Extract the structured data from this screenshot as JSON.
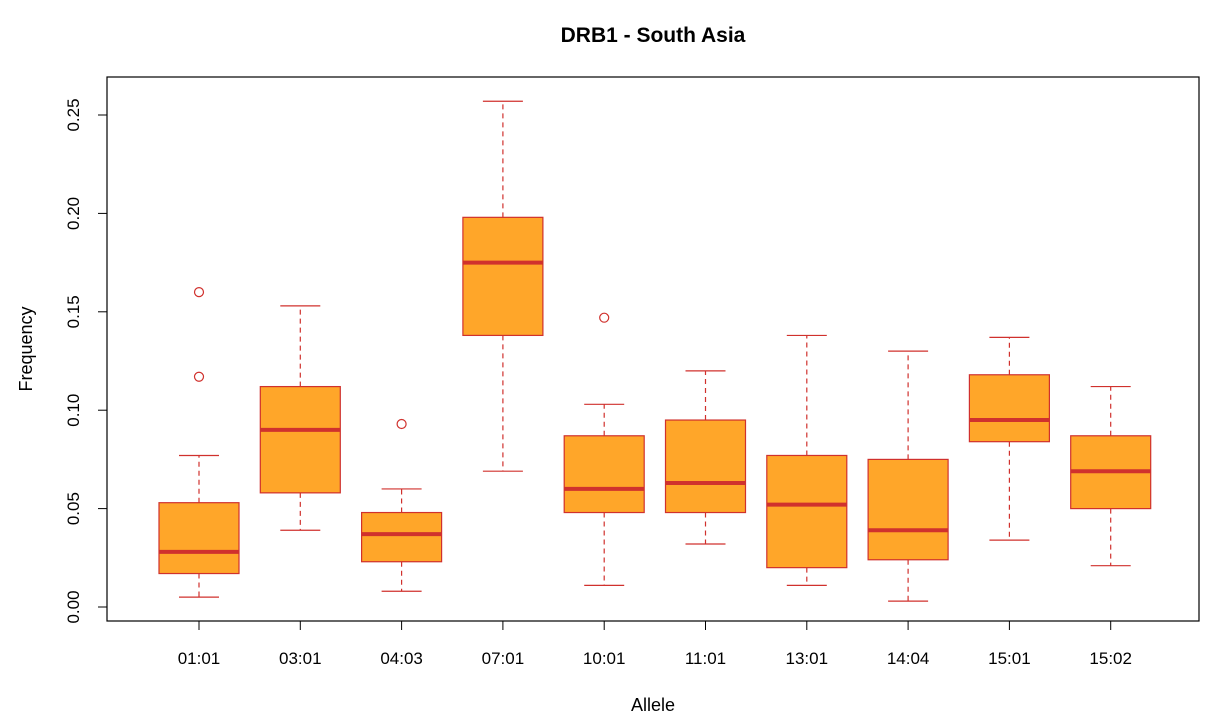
{
  "chart_data": {
    "type": "boxplot",
    "title": "DRB1 - South Asia",
    "xlabel": "Allele",
    "ylabel": "Frequency",
    "ylim": [
      0,
      0.26
    ],
    "yticks": [
      0.0,
      0.05,
      0.1,
      0.15,
      0.2,
      0.25
    ],
    "ytick_labels": [
      "0.00",
      "0.05",
      "0.10",
      "0.15",
      "0.20",
      "0.25"
    ],
    "grid": false,
    "colors": {
      "box_fill": "#FFA629",
      "box_stroke": "#D0312D"
    },
    "categories": [
      "01:01",
      "03:01",
      "04:03",
      "07:01",
      "10:01",
      "11:01",
      "13:01",
      "14:04",
      "15:01",
      "15:02"
    ],
    "boxes": [
      {
        "label": "01:01",
        "min": 0.005,
        "q1": 0.017,
        "median": 0.028,
        "q3": 0.053,
        "max": 0.077,
        "outliers": [
          0.117,
          0.16
        ]
      },
      {
        "label": "03:01",
        "min": 0.039,
        "q1": 0.058,
        "median": 0.09,
        "q3": 0.112,
        "max": 0.153,
        "outliers": []
      },
      {
        "label": "04:03",
        "min": 0.008,
        "q1": 0.023,
        "median": 0.037,
        "q3": 0.048,
        "max": 0.06,
        "outliers": [
          0.093
        ]
      },
      {
        "label": "07:01",
        "min": 0.069,
        "q1": 0.138,
        "median": 0.175,
        "q3": 0.198,
        "max": 0.257,
        "outliers": []
      },
      {
        "label": "10:01",
        "min": 0.011,
        "q1": 0.048,
        "median": 0.06,
        "q3": 0.087,
        "max": 0.103,
        "outliers": [
          0.147
        ]
      },
      {
        "label": "11:01",
        "min": 0.032,
        "q1": 0.048,
        "median": 0.063,
        "q3": 0.095,
        "max": 0.12,
        "outliers": []
      },
      {
        "label": "13:01",
        "min": 0.011,
        "q1": 0.02,
        "median": 0.052,
        "q3": 0.077,
        "max": 0.138,
        "outliers": []
      },
      {
        "label": "14:04",
        "min": 0.003,
        "q1": 0.024,
        "median": 0.039,
        "q3": 0.075,
        "max": 0.13,
        "outliers": []
      },
      {
        "label": "15:01",
        "min": 0.034,
        "q1": 0.084,
        "median": 0.095,
        "q3": 0.118,
        "max": 0.137,
        "outliers": []
      },
      {
        "label": "15:02",
        "min": 0.021,
        "q1": 0.05,
        "median": 0.069,
        "q3": 0.087,
        "max": 0.112,
        "outliers": []
      }
    ]
  }
}
